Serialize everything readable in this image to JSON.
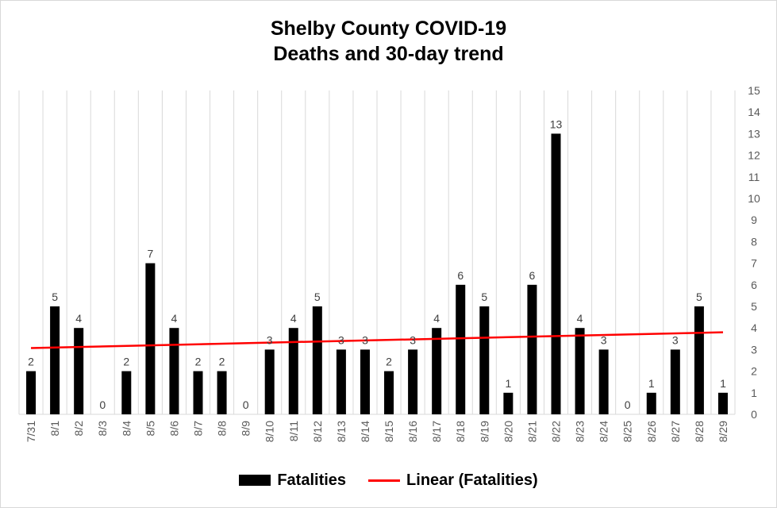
{
  "chart_data": {
    "type": "bar",
    "title_line1": "Shelby County COVID-19",
    "title_line2": "Deaths and 30-day trend",
    "xlabel": "",
    "ylabel": "",
    "categories": [
      "7/31",
      "8/1",
      "8/2",
      "8/3",
      "8/4",
      "8/5",
      "8/6",
      "8/7",
      "8/8",
      "8/9",
      "8/10",
      "8/11",
      "8/12",
      "8/13",
      "8/14",
      "8/15",
      "8/16",
      "8/17",
      "8/18",
      "8/19",
      "8/20",
      "8/21",
      "8/22",
      "8/23",
      "8/24",
      "8/25",
      "8/26",
      "8/27",
      "8/28",
      "8/29"
    ],
    "series": [
      {
        "name": "Fatalities",
        "type": "bar",
        "color": "#000000",
        "values": [
          2,
          5,
          4,
          0,
          2,
          7,
          4,
          2,
          2,
          0,
          3,
          4,
          5,
          3,
          3,
          2,
          3,
          4,
          6,
          5,
          1,
          6,
          13,
          4,
          3,
          0,
          1,
          3,
          5,
          1
        ]
      },
      {
        "name": "Linear (Fatalities)",
        "type": "trendline",
        "color": "#ff0000",
        "start": 3.07,
        "end": 3.8
      }
    ],
    "ylim": [
      0,
      15
    ],
    "yticks": [
      0,
      1,
      2,
      3,
      4,
      5,
      6,
      7,
      8,
      9,
      10,
      11,
      12,
      13,
      14,
      15
    ],
    "yaxis_position": "right",
    "grid": "vertical",
    "data_labels": true,
    "legend_position": "bottom"
  }
}
